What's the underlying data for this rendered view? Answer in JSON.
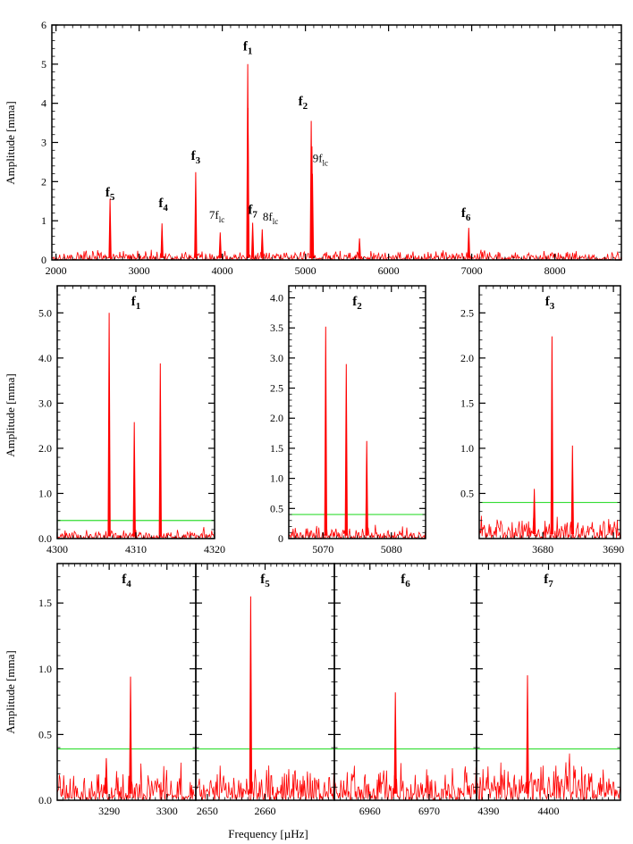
{
  "figure": {
    "xlabel": "Frequency [µHz]",
    "ylabel": "Amplitude [mma]",
    "colors": {
      "spectrum": "#ff0000",
      "threshold": "#33dd33",
      "axes": "#000000"
    }
  },
  "chart_data": [
    {
      "type": "line",
      "panel": "overview",
      "title": "",
      "ylabel": "Amplitude [mma]",
      "xlabel": "",
      "xlim": [
        1950,
        8800
      ],
      "ylim": [
        0,
        6
      ],
      "xticks": [
        2000,
        3000,
        4000,
        5000,
        6000,
        7000,
        8000
      ],
      "yticks": [
        0,
        1,
        2,
        3,
        4,
        5,
        6
      ],
      "noise_level": 0.12,
      "peaks": [
        {
          "x": 2650,
          "y": 1.56
        },
        {
          "x": 3275,
          "y": 0.93
        },
        {
          "x": 3680,
          "y": 2.24
        },
        {
          "x": 3975,
          "y": 0.7
        },
        {
          "x": 4306,
          "y": 5.0
        },
        {
          "x": 4309,
          "y": 3.88
        },
        {
          "x": 4365,
          "y": 0.95
        },
        {
          "x": 4480,
          "y": 0.78
        },
        {
          "x": 5070,
          "y": 3.55
        },
        {
          "x": 5078,
          "y": 2.9
        },
        {
          "x": 5085,
          "y": 2.2
        },
        {
          "x": 5650,
          "y": 0.55
        },
        {
          "x": 6964,
          "y": 0.82
        }
      ],
      "annotations": [
        {
          "x": 2650,
          "y": 1.62,
          "base": "f",
          "sub": "5",
          "bold": true
        },
        {
          "x": 3290,
          "y": 1.35,
          "base": "f",
          "sub": "4",
          "bold": true
        },
        {
          "x": 3680,
          "y": 2.55,
          "base": "f",
          "sub": "3",
          "bold": true
        },
        {
          "x": 3935,
          "y": 1.05,
          "base": "7f",
          "sub": "lc",
          "bold": false
        },
        {
          "x": 4306,
          "y": 5.35,
          "base": "f",
          "sub": "1",
          "bold": true
        },
        {
          "x": 4365,
          "y": 1.17,
          "base": "f",
          "sub": "7",
          "bold": true
        },
        {
          "x": 4580,
          "y": 1.0,
          "base": "8f",
          "sub": "lc",
          "bold": false
        },
        {
          "x": 4970,
          "y": 3.95,
          "base": "f",
          "sub": "2",
          "bold": true
        },
        {
          "x": 5180,
          "y": 2.5,
          "base": "9f",
          "sub": "lc",
          "bold": false
        },
        {
          "x": 6930,
          "y": 1.1,
          "base": "f",
          "sub": "6",
          "bold": true
        }
      ]
    },
    {
      "type": "line",
      "panel": "f1",
      "title": "f1",
      "title_base": "f",
      "title_sub": "1",
      "xlim": [
        4300,
        4320
      ],
      "ylim": [
        0,
        5.6
      ],
      "xticks": [
        4300,
        4310,
        4320
      ],
      "yticks": [
        0.0,
        1.0,
        2.0,
        3.0,
        4.0,
        5.0
      ],
      "ytick_labels": [
        "0.0",
        "1.0",
        "2.0",
        "3.0",
        "4.0",
        "5.0"
      ],
      "threshold": 0.4,
      "noise_level": 0.1,
      "peaks": [
        {
          "x": 4306.6,
          "y": 5.0
        },
        {
          "x": 4309.8,
          "y": 2.58
        },
        {
          "x": 4313.1,
          "y": 3.88
        }
      ]
    },
    {
      "type": "line",
      "panel": "f2",
      "title": "f2",
      "title_base": "f",
      "title_sub": "2",
      "xlim": [
        5065,
        5085
      ],
      "ylim": [
        0,
        4.2
      ],
      "xticks": [
        5070,
        5080
      ],
      "yticks": [
        0,
        0.5,
        1.0,
        1.5,
        2.0,
        2.5,
        3.0,
        3.5,
        4.0
      ],
      "ytick_labels": [
        "0",
        "0.5",
        "1.0",
        "1.5",
        "2.0",
        "2.5",
        "3.0",
        "3.5",
        "4.0"
      ],
      "threshold": 0.4,
      "noise_level": 0.1,
      "peaks": [
        {
          "x": 5070.4,
          "y": 3.52
        },
        {
          "x": 5073.4,
          "y": 2.9
        },
        {
          "x": 5076.4,
          "y": 1.62
        }
      ]
    },
    {
      "type": "line",
      "panel": "f3",
      "title": "f3",
      "title_base": "f",
      "title_sub": "3",
      "xlim": [
        3671,
        3691
      ],
      "ylim": [
        0,
        2.8
      ],
      "xticks": [
        3680,
        3690
      ],
      "yticks": [
        0.5,
        1.0,
        1.5,
        2.0,
        2.5
      ],
      "ytick_labels": [
        "0.5",
        "1.0",
        "1.5",
        "2.0",
        "2.5"
      ],
      "threshold": 0.4,
      "noise_level": 0.12,
      "peaks": [
        {
          "x": 3678.8,
          "y": 0.55
        },
        {
          "x": 3681.3,
          "y": 2.24
        },
        {
          "x": 3684.2,
          "y": 1.03
        }
      ]
    },
    {
      "type": "line",
      "panel": "f4",
      "title": "f4",
      "title_base": "f",
      "title_sub": "4",
      "xlim": [
        3281,
        3305
      ],
      "ylim": [
        0,
        1.8
      ],
      "xticks": [
        3290,
        3300
      ],
      "yticks": [
        0.0,
        0.5,
        1.0,
        1.5
      ],
      "ytick_labels": [
        "0.0",
        "0.5",
        "1.0",
        "1.5"
      ],
      "threshold": 0.39,
      "noise_level": 0.14,
      "peaks": [
        {
          "x": 3293.7,
          "y": 0.94
        },
        {
          "x": 3289.5,
          "y": 0.32
        }
      ]
    },
    {
      "type": "line",
      "panel": "f5",
      "title": "f5",
      "title_base": "f",
      "title_sub": "5",
      "xlim": [
        2648,
        2672
      ],
      "ylim": [
        0,
        1.8
      ],
      "xticks": [
        2650,
        2660
      ],
      "yticks": [],
      "threshold": 0.39,
      "noise_level": 0.14,
      "peaks": [
        {
          "x": 2657.5,
          "y": 1.55
        }
      ]
    },
    {
      "type": "line",
      "panel": "f6",
      "title": "f6",
      "title_base": "f",
      "title_sub": "6",
      "xlim": [
        6954,
        6978
      ],
      "ylim": [
        0,
        1.8
      ],
      "xticks": [
        6960,
        6970
      ],
      "yticks": [],
      "threshold": 0.39,
      "noise_level": 0.14,
      "peaks": [
        {
          "x": 6964.3,
          "y": 0.82
        }
      ]
    },
    {
      "type": "line",
      "panel": "f7",
      "title": "f7",
      "title_base": "f",
      "title_sub": "7",
      "xlim": [
        4388,
        4412
      ],
      "ylim": [
        0,
        1.8
      ],
      "xticks": [
        4390,
        4400
      ],
      "yticks": [],
      "threshold": 0.39,
      "noise_level": 0.14,
      "peaks": [
        {
          "x": 4396.5,
          "y": 0.95
        }
      ]
    }
  ]
}
